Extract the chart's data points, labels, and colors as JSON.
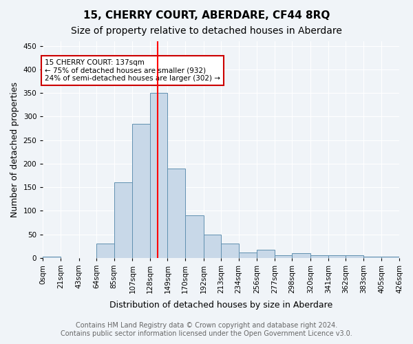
{
  "title": "15, CHERRY COURT, ABERDARE, CF44 8RQ",
  "subtitle": "Size of property relative to detached houses in Aberdare",
  "xlabel": "Distribution of detached houses by size in Aberdare",
  "ylabel": "Number of detached properties",
  "bar_color": "#c8d8e8",
  "bar_edge_color": "#6090b0",
  "tick_labels": [
    "0sqm",
    "21sqm",
    "43sqm",
    "64sqm",
    "85sqm",
    "107sqm",
    "128sqm",
    "149sqm",
    "170sqm",
    "192sqm",
    "213sqm",
    "234sqm",
    "256sqm",
    "277sqm",
    "298sqm",
    "320sqm",
    "341sqm",
    "362sqm",
    "383sqm",
    "405sqm",
    "426sqm"
  ],
  "bin_edges": [
    0,
    21,
    43,
    64,
    85,
    107,
    128,
    149,
    170,
    192,
    213,
    234,
    256,
    277,
    298,
    320,
    341,
    362,
    383,
    405,
    426
  ],
  "values": [
    3,
    0,
    0,
    30,
    160,
    285,
    350,
    190,
    90,
    50,
    30,
    12,
    17,
    6,
    10,
    5,
    6,
    5,
    2,
    2
  ],
  "ylim": [
    0,
    460
  ],
  "yticks": [
    0,
    50,
    100,
    150,
    200,
    250,
    300,
    350,
    400,
    450
  ],
  "red_line_x": 137,
  "annotation_text": "15 CHERRY COURT: 137sqm\n← 75% of detached houses are smaller (932)\n24% of semi-detached houses are larger (302) →",
  "annotation_box_color": "#ffffff",
  "annotation_box_edge_color": "#cc0000",
  "footer_line1": "Contains HM Land Registry data © Crown copyright and database right 2024.",
  "footer_line2": "Contains public sector information licensed under the Open Government Licence v3.0.",
  "background_color": "#f0f4f8",
  "grid_color": "#ffffff",
  "title_fontsize": 11,
  "subtitle_fontsize": 10,
  "axis_label_fontsize": 9,
  "tick_fontsize": 7.5,
  "footer_fontsize": 7
}
